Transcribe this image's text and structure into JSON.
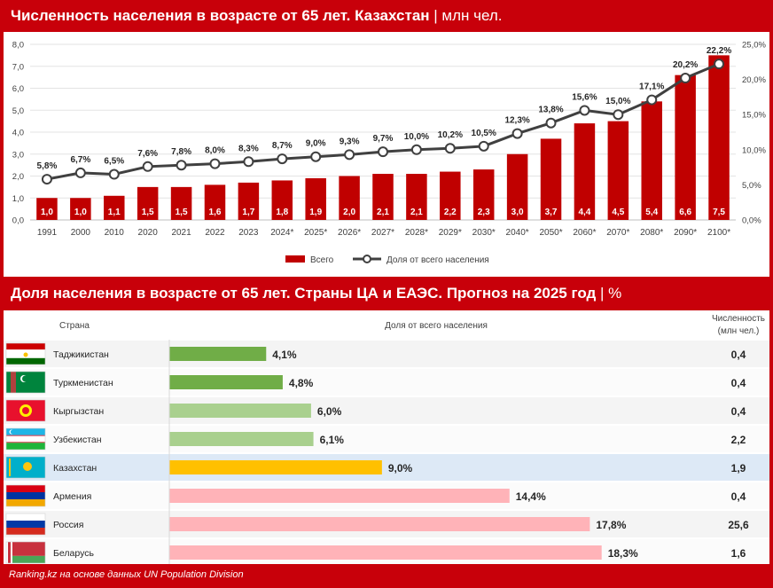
{
  "header1": {
    "title": "Численность населения в возрасте от 65 лет. Казахстан",
    "unit": "| млн чел."
  },
  "header2": {
    "title": "Доля населения в возрасте от 65 лет. Страны ЦА и ЕАЭС. Прогноз на 2025 год",
    "unit": "| %"
  },
  "chart_data": [
    {
      "type": "bar",
      "categories": [
        "1991",
        "2000",
        "2010",
        "2020",
        "2021",
        "2022",
        "2023",
        "2024*",
        "2025*",
        "2026*",
        "2027*",
        "2028*",
        "2029*",
        "2030*",
        "2040*",
        "2050*",
        "2060*",
        "2070*",
        "2080*",
        "2090*",
        "2100*"
      ],
      "series": [
        {
          "name": "Всего",
          "type": "bar",
          "axis": "left",
          "color": "#c00000",
          "values": [
            1.0,
            1.0,
            1.1,
            1.5,
            1.5,
            1.6,
            1.7,
            1.8,
            1.9,
            2.0,
            2.1,
            2.1,
            2.2,
            2.3,
            3.0,
            3.7,
            4.4,
            4.5,
            5.4,
            6.6,
            7.5
          ],
          "labels": [
            "1,0",
            "1,0",
            "1,1",
            "1,5",
            "1,5",
            "1,6",
            "1,7",
            "1,8",
            "1,9",
            "2,0",
            "2,1",
            "2,1",
            "2,2",
            "2,3",
            "3,0",
            "3,7",
            "4,4",
            "4,5",
            "5,4",
            "6,6",
            "7,5"
          ]
        },
        {
          "name": "Доля от всего населения",
          "type": "line",
          "axis": "right",
          "color": "#404040",
          "values": [
            5.8,
            6.7,
            6.5,
            7.6,
            7.8,
            8.0,
            8.3,
            8.7,
            9.0,
            9.3,
            9.7,
            10.0,
            10.2,
            10.5,
            12.3,
            13.8,
            15.6,
            15.0,
            17.1,
            20.2,
            22.2
          ],
          "labels": [
            "5,8%",
            "6,7%",
            "6,5%",
            "7,6%",
            "7,8%",
            "8,0%",
            "8,3%",
            "8,7%",
            "9,0%",
            "9,3%",
            "9,7%",
            "10,0%",
            "10,2%",
            "10,5%",
            "12,3%",
            "13,8%",
            "15,6%",
            "15,0%",
            "17,1%",
            "20,2%",
            "22,2%"
          ]
        }
      ],
      "ylim": [
        0,
        8
      ],
      "y2lim": [
        0,
        25
      ],
      "yticks": [
        "0,0",
        "1,0",
        "2,0",
        "3,0",
        "4,0",
        "5,0",
        "6,0",
        "7,0",
        "8,0"
      ],
      "y2ticks": [
        "0,0%",
        "5,0%",
        "10,0%",
        "15,0%",
        "20,0%",
        "25,0%"
      ],
      "grid": true,
      "legend": "bottom-center"
    },
    {
      "type": "bar",
      "orientation": "horizontal",
      "headers": {
        "country": "Страна",
        "share": "Доля от всего населения",
        "count_line1": "Численность",
        "count_line2": "(млн чел.)"
      },
      "xlim": [
        0,
        20
      ],
      "rows": [
        {
          "country": "Таджикистан",
          "share": 4.1,
          "share_label": "4,1%",
          "count": "0,4",
          "color": "#70ad47",
          "flag": "tajikistan-flag",
          "highlight": false
        },
        {
          "country": "Туркменистан",
          "share": 4.8,
          "share_label": "4,8%",
          "count": "0,4",
          "color": "#70ad47",
          "flag": "turkmenistan-flag",
          "highlight": false
        },
        {
          "country": "Кыргызстан",
          "share": 6.0,
          "share_label": "6,0%",
          "count": "0,4",
          "color": "#a9d08e",
          "flag": "kyrgyzstan-flag",
          "highlight": false
        },
        {
          "country": "Узбекистан",
          "share": 6.1,
          "share_label": "6,1%",
          "count": "2,2",
          "color": "#a9d08e",
          "flag": "uzbekistan-flag",
          "highlight": false
        },
        {
          "country": "Казахстан",
          "share": 9.0,
          "share_label": "9,0%",
          "count": "1,9",
          "color": "#ffc000",
          "flag": "kazakhstan-flag",
          "highlight": true
        },
        {
          "country": "Армения",
          "share": 14.4,
          "share_label": "14,4%",
          "count": "0,4",
          "color": "#ffb3b8",
          "flag": "armenia-flag",
          "highlight": false
        },
        {
          "country": "Россия",
          "share": 17.8,
          "share_label": "17,8%",
          "count": "25,6",
          "color": "#ffb3b8",
          "flag": "russia-flag",
          "highlight": false
        },
        {
          "country": "Беларусь",
          "share": 18.3,
          "share_label": "18,3%",
          "count": "1,6",
          "color": "#ffb3b8",
          "flag": "belarus-flag",
          "highlight": false
        }
      ]
    }
  ],
  "footer": "Ranking.kz на основе данных UN Population Division"
}
